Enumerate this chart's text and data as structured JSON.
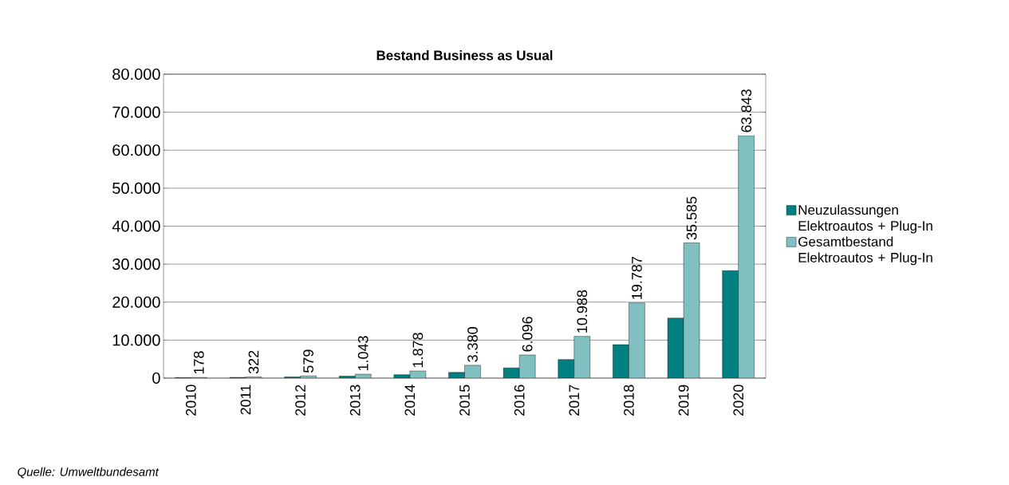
{
  "chart_data": {
    "type": "bar",
    "title": "Bestand Business as Usual",
    "categories": [
      "2010",
      "2011",
      "2012",
      "2013",
      "2014",
      "2015",
      "2016",
      "2017",
      "2018",
      "2019",
      "2020"
    ],
    "series": [
      {
        "name": "Neuzulassungen Elektroautos + Plug-In",
        "color": "#008080",
        "values": [
          100,
          200,
          300,
          500,
          900,
          1500,
          2700,
          4900,
          8800,
          15800,
          28300
        ]
      },
      {
        "name": "Gesamtbestand Elektroautos + Plug-In",
        "color": "#80c0c0",
        "values": [
          178,
          322,
          579,
          1043,
          1878,
          3380,
          6096,
          10988,
          19787,
          35585,
          63843
        ],
        "value_labels": [
          "178",
          "322",
          "579",
          "1.043",
          "1.878",
          "3.380",
          "6.096",
          "10.988",
          "19.787",
          "35.585",
          "63.843"
        ]
      }
    ],
    "ylim": [
      0,
      80000
    ],
    "yticks": [
      {
        "value": 0,
        "label": "0"
      },
      {
        "value": 10000,
        "label": "10.000"
      },
      {
        "value": 20000,
        "label": "20.000"
      },
      {
        "value": 30000,
        "label": "30.000"
      },
      {
        "value": 40000,
        "label": "40.000"
      },
      {
        "value": 50000,
        "label": "50.000"
      },
      {
        "value": 60000,
        "label": "60.000"
      },
      {
        "value": 70000,
        "label": "70.000"
      },
      {
        "value": 80000,
        "label": "80.000"
      }
    ],
    "grid": "y",
    "legend": "right",
    "annotations": [
      "Quelle: Umweltbundesamt"
    ]
  }
}
